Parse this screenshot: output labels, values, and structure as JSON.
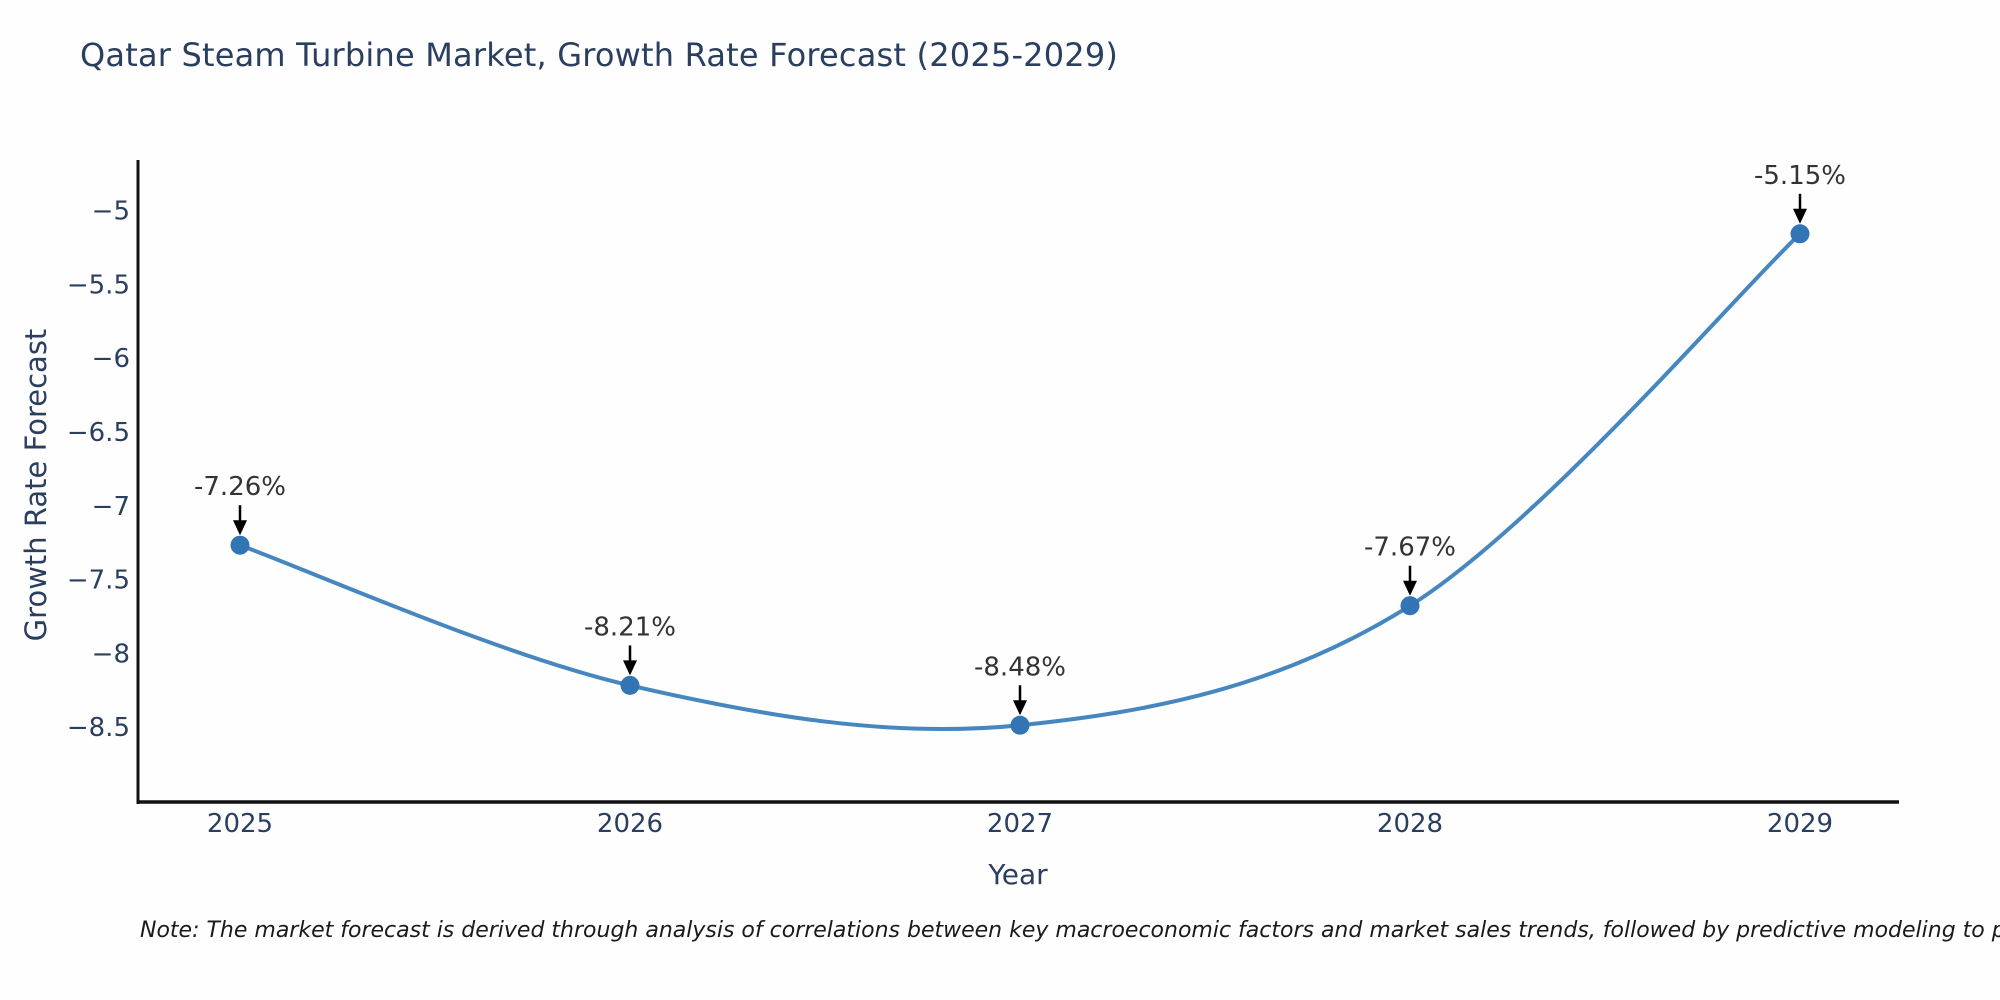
{
  "note": "Note: The market forecast is derived through analysis of correlations between key macroeconomic factors and market sales trends, followed by predictive modeling to project future sales.",
  "chart_data": {
    "type": "line",
    "title": "Qatar Steam Turbine Market, Growth Rate Forecast (2025-2029)",
    "x": [
      "2025",
      "2026",
      "2027",
      "2028",
      "2029"
    ],
    "series": [
      {
        "name": "Growth Rate Forecast",
        "values": [
          -7.26,
          -8.21,
          -8.48,
          -7.67,
          -5.15
        ]
      }
    ],
    "point_labels": [
      "-7.26%",
      "-8.21%",
      "-8.48%",
      "-7.67%",
      "-5.15%"
    ],
    "xlabel": "Year",
    "ylabel": "Growth Rate Forecast",
    "yticks": [
      -5,
      -5.5,
      -6,
      -6.5,
      -7,
      -7.5,
      -8,
      -8.5
    ],
    "ylim": [
      -9.0,
      -4.65
    ],
    "grid": false,
    "legend": "none",
    "line_shape": "spline",
    "colors": {
      "line": "#4787c0",
      "marker": "#3274b4",
      "arrow": "#000000",
      "axis": "#111111",
      "tick_text": "#2a3f5f",
      "annotation_text": "#333333"
    }
  }
}
